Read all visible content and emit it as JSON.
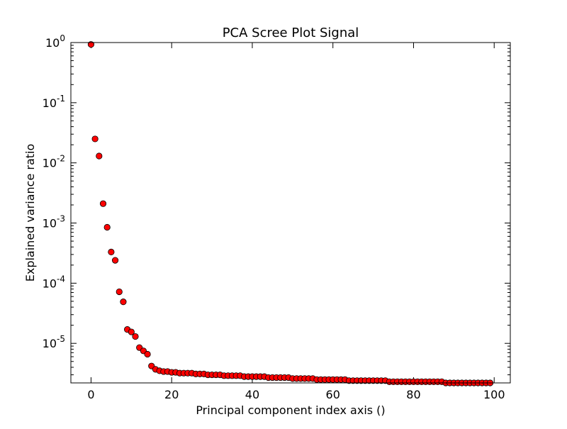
{
  "chart_data": {
    "type": "scatter",
    "title": "PCA Scree Plot Signal",
    "xlabel": "Principal component index axis ()",
    "ylabel": "Explained variance ratio",
    "xlim": [
      -5,
      104
    ],
    "ylim": [
      2.2e-06,
      1.0
    ],
    "yscale": "log",
    "grid": false,
    "legend": "none",
    "x_ticks": [
      {
        "value": 0,
        "label": "0"
      },
      {
        "value": 20,
        "label": "20"
      },
      {
        "value": 40,
        "label": "40"
      },
      {
        "value": 60,
        "label": "60"
      },
      {
        "value": 80,
        "label": "80"
      },
      {
        "value": 100,
        "label": "100"
      }
    ],
    "y_ticks": [
      {
        "value": 1.0,
        "base": "10",
        "exp": "0"
      },
      {
        "value": 0.1,
        "base": "10",
        "exp": "-1"
      },
      {
        "value": 0.01,
        "base": "10",
        "exp": "-2"
      },
      {
        "value": 0.001,
        "base": "10",
        "exp": "-3"
      },
      {
        "value": 0.0001,
        "base": "10",
        "exp": "-4"
      },
      {
        "value": 1e-05,
        "base": "10",
        "exp": "-5"
      }
    ],
    "marker_color": "#ff0000",
    "marker_edge_color": "#000000",
    "series": [
      {
        "x": [
          0,
          1,
          2,
          3,
          4,
          5,
          6,
          7,
          8,
          9,
          10,
          11,
          12,
          13,
          14,
          15,
          16,
          17,
          18,
          19,
          20,
          21,
          22,
          23,
          24,
          25,
          26,
          27,
          28,
          29,
          30,
          31,
          32,
          33,
          34,
          35,
          36,
          37,
          38,
          39,
          40,
          41,
          42,
          43,
          44,
          45,
          46,
          47,
          48,
          49,
          50,
          51,
          52,
          53,
          54,
          55,
          56,
          57,
          58,
          59,
          60,
          61,
          62,
          63,
          64,
          65,
          66,
          67,
          68,
          69,
          70,
          71,
          72,
          73,
          74,
          75,
          76,
          77,
          78,
          79,
          80,
          81,
          82,
          83,
          84,
          85,
          86,
          87,
          88,
          89,
          90,
          91,
          92,
          93,
          94,
          95,
          96,
          97,
          98,
          99
        ],
        "y": [
          0.93,
          0.025,
          0.013,
          0.0021,
          0.00085,
          0.00033,
          0.00024,
          7.2e-05,
          4.9e-05,
          1.7e-05,
          1.55e-05,
          1.3e-05,
          8.5e-06,
          7.5e-06,
          6.6e-06,
          4.2e-06,
          3.7e-06,
          3.5e-06,
          3.4e-06,
          3.4e-06,
          3.3e-06,
          3.3e-06,
          3.2e-06,
          3.2e-06,
          3.2e-06,
          3.2e-06,
          3.1e-06,
          3.1e-06,
          3.1e-06,
          3e-06,
          3e-06,
          3e-06,
          3e-06,
          2.9e-06,
          2.9e-06,
          2.9e-06,
          2.9e-06,
          2.9e-06,
          2.8e-06,
          2.8e-06,
          2.8e-06,
          2.8e-06,
          2.8e-06,
          2.8e-06,
          2.7e-06,
          2.7e-06,
          2.7e-06,
          2.7e-06,
          2.7e-06,
          2.7e-06,
          2.6e-06,
          2.6e-06,
          2.6e-06,
          2.6e-06,
          2.6e-06,
          2.6e-06,
          2.5e-06,
          2.5e-06,
          2.5e-06,
          2.5e-06,
          2.5e-06,
          2.5e-06,
          2.5e-06,
          2.5e-06,
          2.4e-06,
          2.4e-06,
          2.4e-06,
          2.4e-06,
          2.4e-06,
          2.4e-06,
          2.4e-06,
          2.4e-06,
          2.4e-06,
          2.4e-06,
          2.3e-06,
          2.3e-06,
          2.3e-06,
          2.3e-06,
          2.3e-06,
          2.3e-06,
          2.3e-06,
          2.3e-06,
          2.3e-06,
          2.3e-06,
          2.3e-06,
          2.3e-06,
          2.3e-06,
          2.3e-06,
          2.2e-06,
          2.2e-06,
          2.2e-06,
          2.2e-06,
          2.2e-06,
          2.2e-06,
          2.2e-06,
          2.2e-06,
          2.2e-06,
          2.2e-06,
          2.2e-06,
          2.2e-06
        ]
      }
    ]
  }
}
